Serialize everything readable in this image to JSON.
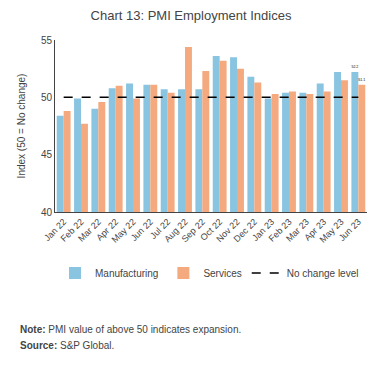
{
  "chart_data": {
    "type": "bar",
    "title": "Chart 13: PMI Employment Indices",
    "ylabel": "Index (50 = No change)",
    "categories": [
      "Jan 22",
      "Feb 22",
      "Mar 22",
      "Apr 22",
      "May 22",
      "Jun 22",
      "Jul 22",
      "Aug 22",
      "Sep 22",
      "Oct 22",
      "Nov 22",
      "Dec 22",
      "Jan 23",
      "Feb 23",
      "Mar 23",
      "Apr 23",
      "May 23",
      "Jun 23"
    ],
    "series": [
      {
        "name": "Manufacturing",
        "type": "bar",
        "color": "#89C4E1",
        "values": [
          48.4,
          49.9,
          49.0,
          50.8,
          51.2,
          51.1,
          50.7,
          50.7,
          50.7,
          53.6,
          53.5,
          51.8,
          49.9,
          50.4,
          50.4,
          51.2,
          52.2,
          52.2
        ],
        "value_labels": [
          null,
          null,
          null,
          null,
          null,
          null,
          null,
          null,
          null,
          null,
          null,
          null,
          null,
          null,
          null,
          null,
          null,
          "52.2"
        ]
      },
      {
        "name": "Services",
        "type": "bar",
        "color": "#F4A97F",
        "values": [
          48.8,
          47.7,
          49.6,
          51.0,
          49.9,
          51.1,
          50.4,
          54.4,
          52.3,
          53.2,
          52.5,
          51.3,
          50.3,
          50.5,
          50.3,
          50.5,
          51.5,
          51.1
        ],
        "value_labels": [
          null,
          null,
          null,
          null,
          null,
          null,
          null,
          null,
          null,
          null,
          null,
          null,
          null,
          null,
          null,
          null,
          null,
          "51.1"
        ]
      },
      {
        "name": "No change level",
        "type": "line",
        "color": "#000000",
        "line_style": "dashed",
        "values": [
          50,
          50,
          50,
          50,
          50,
          50,
          50,
          50,
          50,
          50,
          50,
          50,
          50,
          50,
          50,
          50,
          50,
          50
        ]
      }
    ],
    "ylim": [
      40,
      55
    ],
    "yticks": [
      40,
      45,
      50,
      55
    ],
    "grid": false,
    "legend": "bottom",
    "annotations": [
      "Note: PMI value of above 50 indicates expansion.",
      "Source: S&P Global."
    ]
  }
}
